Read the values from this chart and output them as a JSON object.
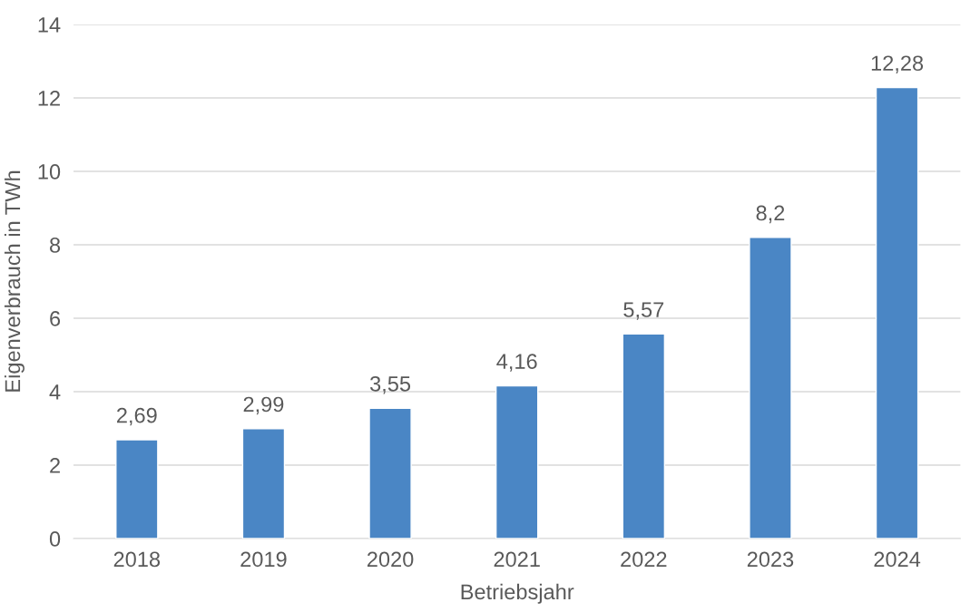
{
  "chart_data": {
    "type": "bar",
    "xlabel": "Betriebsjahr",
    "ylabel": "Eigenverbrauch in TWh",
    "categories": [
      "2018",
      "2019",
      "2020",
      "2021",
      "2022",
      "2023",
      "2024"
    ],
    "values": [
      2.69,
      2.99,
      3.55,
      4.16,
      5.57,
      8.2,
      12.28
    ],
    "value_labels": [
      "2,69",
      "2,99",
      "3,55",
      "4,16",
      "5,57",
      "8,2",
      "12,28"
    ],
    "color": "#4a86c5",
    "ylim": [
      0,
      14
    ],
    "yticks": [
      0,
      2,
      4,
      6,
      8,
      10,
      12,
      14
    ],
    "grid": "y"
  }
}
